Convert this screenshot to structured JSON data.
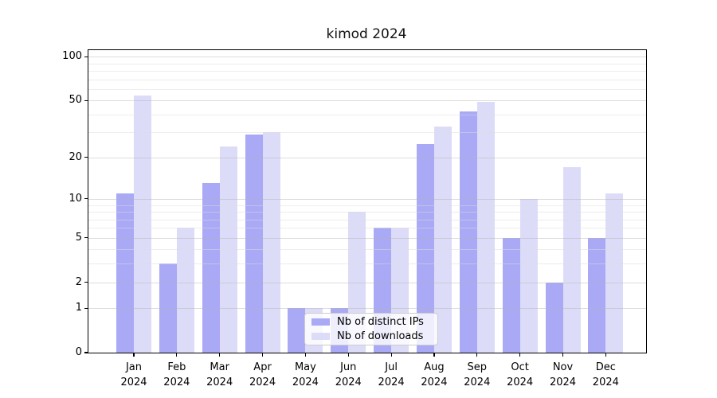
{
  "chart_data": {
    "type": "bar",
    "title": "kimod 2024",
    "categories": [
      "Jan",
      "Feb",
      "Mar",
      "Apr",
      "May",
      "Jun",
      "Jul",
      "Aug",
      "Sep",
      "Oct",
      "Nov",
      "Dec"
    ],
    "category_year": "2024",
    "series": [
      {
        "name": "Nb of distinct IPs",
        "color": "#a9a9f5",
        "values": [
          11,
          3,
          13,
          29,
          1,
          1,
          6,
          25,
          42,
          5,
          2,
          5
        ]
      },
      {
        "name": "Nb of downloads",
        "color": "#dcdcf8",
        "values": [
          54,
          6,
          24,
          30,
          1,
          8,
          6,
          33,
          49,
          10,
          17,
          11
        ]
      }
    ],
    "yscale": "log1p",
    "ylim": [
      0,
      111
    ],
    "yticks": [
      0,
      1,
      2,
      5,
      10,
      20,
      50,
      100
    ],
    "yticks_minor": [
      3,
      4,
      6,
      7,
      8,
      9,
      30,
      40,
      60,
      70,
      80,
      90
    ],
    "grid": true,
    "legend_position": "lower center",
    "axis_color": "#000000",
    "grid_major_color": "rgba(180,180,180,0.45)",
    "grid_minor_color": "rgba(220,220,220,0.5)"
  }
}
